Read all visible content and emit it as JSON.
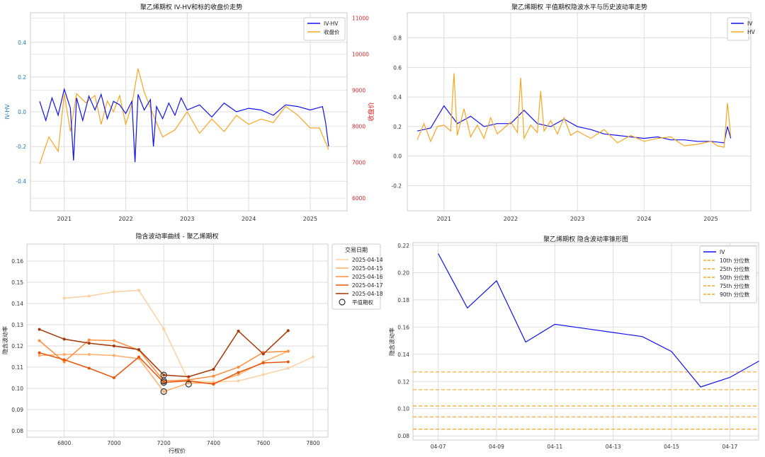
{
  "chart_data": [
    {
      "type": "line",
      "title": "聚乙烯期权 IV-HV和标的收盘价走势",
      "ylabel": "IV-HV",
      "y2label": "收盘价",
      "ylim": [
        -0.57,
        0.57
      ],
      "y2lim": [
        5650,
        11150
      ],
      "yticks": [
        "-0.4",
        "-0.2",
        "0.0",
        "0.2",
        "0.4"
      ],
      "y2ticks": [
        "6000",
        "7000",
        "8000",
        "9000",
        "10000",
        "11000"
      ],
      "xticks": [
        "2021",
        "2022",
        "2023",
        "2024",
        "2025"
      ],
      "xlim": [
        2020.45,
        2025.6
      ],
      "legend_position": "top-right",
      "legend": [
        "IV-HV",
        "收盘价"
      ],
      "colors": {
        "primary": "#1111ee",
        "secondary": "#f5a623",
        "left_axis": "#1f77b4",
        "right_axis": "#d62728"
      },
      "series": [
        {
          "name": "IV-HV",
          "axis": "left",
          "x": [
            2020.6,
            2020.7,
            2020.8,
            2020.9,
            2021.0,
            2021.1,
            2021.15,
            2021.2,
            2021.3,
            2021.4,
            2021.5,
            2021.6,
            2021.7,
            2021.8,
            2021.9,
            2022.0,
            2022.1,
            2022.15,
            2022.2,
            2022.3,
            2022.4,
            2022.45,
            2022.5,
            2022.6,
            2022.7,
            2022.8,
            2022.9,
            2023.0,
            2023.2,
            2023.4,
            2023.6,
            2023.8,
            2024.0,
            2024.2,
            2024.4,
            2024.6,
            2024.8,
            2025.0,
            2025.1,
            2025.2,
            2025.25,
            2025.3
          ],
          "y": [
            0.06,
            -0.05,
            0.08,
            -0.02,
            0.13,
            0.02,
            -0.28,
            0.08,
            -0.05,
            0.09,
            0.01,
            0.1,
            -0.04,
            0.06,
            0.04,
            -0.01,
            0.06,
            -0.29,
            0.1,
            0.01,
            0.07,
            -0.2,
            0.03,
            -0.04,
            0.05,
            -0.02,
            0.08,
            0.01,
            0.04,
            -0.03,
            0.05,
            0.0,
            0.02,
            0.01,
            -0.02,
            0.04,
            0.03,
            0.01,
            0.02,
            0.03,
            -0.06,
            -0.2
          ]
        },
        {
          "name": "收盘价",
          "axis": "right",
          "x": [
            2020.6,
            2020.75,
            2020.9,
            2021.0,
            2021.1,
            2021.2,
            2021.35,
            2021.5,
            2021.6,
            2021.7,
            2021.8,
            2021.9,
            2022.0,
            2022.1,
            2022.2,
            2022.3,
            2022.45,
            2022.6,
            2022.8,
            2023.0,
            2023.2,
            2023.4,
            2023.6,
            2023.8,
            2024.0,
            2024.2,
            2024.4,
            2024.6,
            2024.8,
            2025.0,
            2025.15,
            2025.3
          ],
          "y": [
            6950,
            7700,
            7300,
            8900,
            7850,
            8900,
            8650,
            8850,
            8050,
            8700,
            8400,
            8850,
            8050,
            8600,
            9600,
            8950,
            8300,
            7700,
            7900,
            8400,
            7800,
            8200,
            7850,
            8300,
            8050,
            8200,
            8100,
            8550,
            8300,
            7950,
            7950,
            7350
          ]
        }
      ]
    },
    {
      "type": "line",
      "title": "聚乙烯期权 平值期权隐波水平与历史波动率走势",
      "ylim": [
        -0.37,
        0.97
      ],
      "yticks": [
        "-0.2",
        "0.0",
        "0.2",
        "0.4",
        "0.6",
        "0.8"
      ],
      "xticks": [
        "2021",
        "2022",
        "2023",
        "2024",
        "2025"
      ],
      "xlim": [
        2020.45,
        2025.6
      ],
      "legend_position": "top-right",
      "legend": [
        "IV",
        "HV"
      ],
      "colors": {
        "IV": "#1111ee",
        "HV": "#f5a623"
      },
      "series": [
        {
          "name": "IV",
          "x": [
            2020.6,
            2020.8,
            2021.0,
            2021.2,
            2021.4,
            2021.6,
            2021.8,
            2022.0,
            2022.2,
            2022.4,
            2022.6,
            2022.8,
            2023.0,
            2023.2,
            2023.4,
            2023.6,
            2023.8,
            2024.0,
            2024.2,
            2024.4,
            2024.6,
            2024.8,
            2025.0,
            2025.2,
            2025.25,
            2025.3
          ],
          "y": [
            0.17,
            0.19,
            0.34,
            0.22,
            0.27,
            0.2,
            0.22,
            0.22,
            0.31,
            0.22,
            0.2,
            0.25,
            0.2,
            0.18,
            0.15,
            0.14,
            0.13,
            0.12,
            0.13,
            0.11,
            0.11,
            0.1,
            0.1,
            0.09,
            0.2,
            0.12
          ]
        },
        {
          "name": "HV",
          "x": [
            2020.6,
            2020.7,
            2020.8,
            2020.9,
            2021.0,
            2021.1,
            2021.15,
            2021.2,
            2021.3,
            2021.4,
            2021.5,
            2021.6,
            2021.7,
            2021.8,
            2021.9,
            2022.0,
            2022.1,
            2022.15,
            2022.2,
            2022.3,
            2022.4,
            2022.45,
            2022.5,
            2022.6,
            2022.7,
            2022.8,
            2022.9,
            2023.0,
            2023.2,
            2023.4,
            2023.6,
            2023.8,
            2024.0,
            2024.2,
            2024.4,
            2024.6,
            2024.8,
            2025.0,
            2025.1,
            2025.2,
            2025.25,
            2025.3
          ],
          "y": [
            0.11,
            0.22,
            0.1,
            0.2,
            0.21,
            0.17,
            0.56,
            0.14,
            0.32,
            0.13,
            0.21,
            0.12,
            0.26,
            0.15,
            0.19,
            0.23,
            0.16,
            0.53,
            0.12,
            0.21,
            0.16,
            0.44,
            0.17,
            0.24,
            0.15,
            0.26,
            0.14,
            0.17,
            0.12,
            0.18,
            0.09,
            0.14,
            0.1,
            0.12,
            0.13,
            0.07,
            0.08,
            0.1,
            0.07,
            0.06,
            0.36,
            0.13
          ]
        }
      ]
    },
    {
      "type": "line",
      "title": "隐含波动率曲线 - 聚乙烯期权",
      "xlabel": "行权价",
      "ylabel": "隐含波动率",
      "xlim": [
        6650,
        7860
      ],
      "ylim": [
        0.077,
        0.168
      ],
      "xticks": [
        "6800",
        "7000",
        "7200",
        "7400",
        "7600",
        "7800"
      ],
      "yticks": [
        "0.08",
        "0.09",
        "0.10",
        "0.11",
        "0.12",
        "0.13",
        "0.14",
        "0.15",
        "0.16"
      ],
      "legend_title": "交易日期",
      "legend_position": "top-right",
      "atm_label": "平值期权",
      "series": [
        {
          "name": "2025-04-14",
          "color": "#fdd0a2",
          "x": [
            6800,
            6900,
            7000,
            7100,
            7200,
            7300,
            7400,
            7500,
            7600,
            7700,
            7800
          ],
          "y": [
            0.1425,
            0.1435,
            0.1455,
            0.1462,
            0.128,
            0.1035,
            0.103,
            0.1035,
            0.1065,
            0.1095,
            0.1148
          ]
        },
        {
          "name": "2025-04-15",
          "color": "#fdae6b",
          "x": [
            6700,
            6800,
            6900,
            7000,
            7100,
            7200,
            7300,
            7400,
            7500,
            7600,
            7700
          ],
          "y": [
            0.1155,
            0.116,
            0.116,
            0.1155,
            0.114,
            0.0985,
            0.1025,
            0.1025,
            0.1065,
            0.1125,
            0.1175
          ]
        },
        {
          "name": "2025-04-16",
          "color": "#fd8d3c",
          "x": [
            6700,
            6800,
            6900,
            7000,
            7100,
            7200,
            7300,
            7400,
            7500,
            7600,
            7700
          ],
          "y": [
            0.1225,
            0.1125,
            0.1228,
            0.1225,
            0.118,
            0.1035,
            0.104,
            0.1058,
            0.11,
            0.117,
            0.1175
          ]
        },
        {
          "name": "2025-04-17",
          "color": "#e6550d",
          "x": [
            6700,
            6800,
            6900,
            7000,
            7100,
            7200,
            7300,
            7400,
            7500,
            7600,
            7700
          ],
          "y": [
            0.1168,
            0.1135,
            0.1095,
            0.105,
            0.1148,
            0.1028,
            0.1035,
            0.102,
            0.1075,
            0.112,
            0.1125
          ]
        },
        {
          "name": "2025-04-18",
          "color": "#a63603",
          "x": [
            6700,
            6800,
            6900,
            7000,
            7100,
            7200,
            7300,
            7400,
            7500,
            7600,
            7700
          ],
          "y": [
            0.1278,
            0.1232,
            0.1213,
            0.12,
            0.1183,
            0.1063,
            0.1055,
            0.109,
            0.127,
            0.1162,
            0.1272
          ]
        }
      ],
      "atm_points": [
        {
          "x": 7200,
          "y": 0.0985
        },
        {
          "x": 7200,
          "y": 0.1035
        },
        {
          "x": 7200,
          "y": 0.1028
        },
        {
          "x": 7200,
          "y": 0.1063
        },
        {
          "x": 7300,
          "y": 0.102
        }
      ]
    },
    {
      "type": "line",
      "title": "聚乙烯期权 隐含波动率锥形图",
      "ylabel": "隐含波动率",
      "ylim": [
        0.077,
        0.222
      ],
      "xlim": [
        0,
        11
      ],
      "yticks": [
        "0.08",
        "0.10",
        "0.12",
        "0.14",
        "0.16",
        "0.18",
        "0.20",
        "0.22"
      ],
      "xticks": [
        {
          "label": "04-07",
          "pos": 0.5
        },
        {
          "label": "04-09",
          "pos": 2.5
        },
        {
          "label": "04-11",
          "pos": 4.5
        },
        {
          "label": "04-13",
          "pos": 6.5
        },
        {
          "label": "04-15",
          "pos": 8.5
        },
        {
          "label": "04-17",
          "pos": 10.5
        }
      ],
      "legend_position": "top-right",
      "series": [
        {
          "name": "IV",
          "color": "#1111ee",
          "x": [
            0.5,
            1.5,
            2.5,
            3.5,
            4.5,
            5.5,
            6.5,
            7.5,
            8.5,
            9.5,
            10.5,
            11.5
          ],
          "y": [
            0.214,
            0.174,
            0.194,
            0.149,
            0.162,
            0.159,
            0.156,
            0.153,
            0.142,
            0.116,
            0.123,
            0.135
          ]
        }
      ],
      "percentiles": [
        {
          "name": "10th 分位数",
          "value": 0.085
        },
        {
          "name": "25th 分位数",
          "value": 0.094
        },
        {
          "name": "50th 分位数",
          "value": 0.102
        },
        {
          "name": "75th 分位数",
          "value": 0.114
        },
        {
          "name": "90th 分位数",
          "value": 0.127
        }
      ],
      "percentile_color": "#f5a623"
    }
  ]
}
